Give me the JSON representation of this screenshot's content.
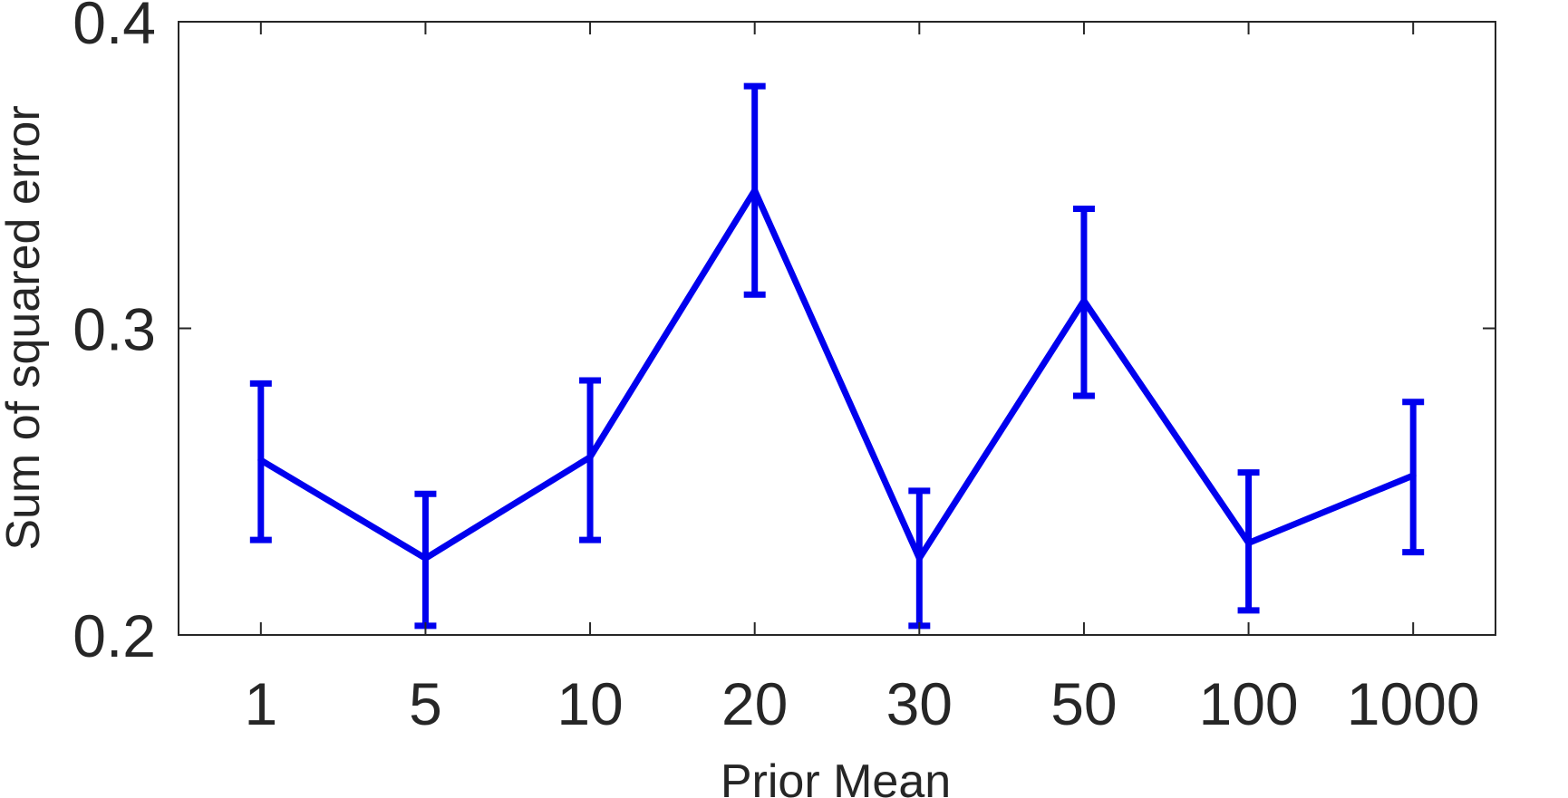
{
  "chart_data": {
    "type": "line",
    "title": "",
    "xlabel": "Prior Mean",
    "ylabel": "Sum of squared error",
    "categories": [
      "1",
      "5",
      "10",
      "20",
      "30",
      "50",
      "100",
      "1000"
    ],
    "ylim": [
      0.2,
      0.4
    ],
    "yticks": [
      0.2,
      0.3,
      0.4
    ],
    "ytick_labels": [
      "0.2",
      "0.3",
      "0.4"
    ],
    "grid": false,
    "series": [
      {
        "values": [
          0.257,
          0.225,
          0.258,
          0.345,
          0.225,
          0.309,
          0.23,
          0.252
        ],
        "error_lower": [
          0.231,
          0.203,
          0.231,
          0.311,
          0.203,
          0.278,
          0.208,
          0.227
        ],
        "error_upper": [
          0.282,
          0.246,
          0.283,
          0.379,
          0.247,
          0.339,
          0.253,
          0.276
        ],
        "color": "#0000ee"
      }
    ]
  }
}
